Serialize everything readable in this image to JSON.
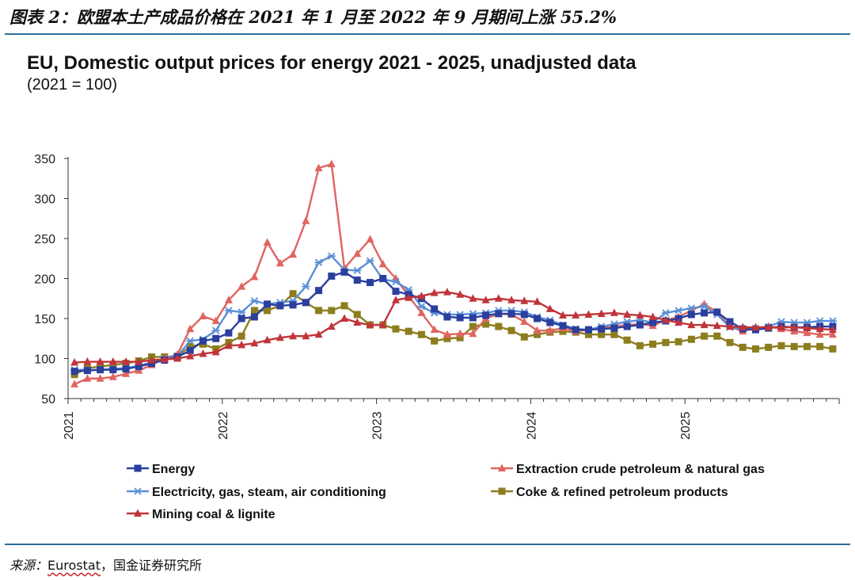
{
  "caption": "图表 2：欧盟本土产成品价格在 2021 年 1 月至 2022 年 9 月期间上涨 55.2%",
  "source": {
    "label": "来源：",
    "name": "Eurostat",
    "rest": "，国金证券研究所"
  },
  "chart_data": {
    "type": "line",
    "title": "EU, Domestic output prices for energy 2021 - 2025, unadjusted data",
    "subtitle": "(2021 = 100)",
    "xlabel": "",
    "ylabel": "",
    "ylim": [
      50,
      350
    ],
    "yticks": [
      "50",
      "100",
      "150",
      "200",
      "250",
      "300",
      "350"
    ],
    "xticks": [
      "2021",
      "2022",
      "2023",
      "2024",
      "2025"
    ],
    "grid": false,
    "x_start": "2021-01",
    "n_points": 60,
    "series": [
      {
        "name": "Energy",
        "color": "#2a3f9e",
        "marker": "square",
        "values": [
          84,
          85,
          86,
          86,
          87,
          90,
          94,
          98,
          102,
          110,
          122,
          125,
          132,
          150,
          152,
          168,
          166,
          167,
          170,
          185,
          203,
          208,
          198,
          195,
          200,
          184,
          180,
          175,
          162,
          152,
          151,
          151,
          154,
          156,
          156,
          155,
          150,
          145,
          141,
          136,
          136,
          137,
          138,
          140,
          142,
          145,
          147,
          150,
          155,
          157,
          158,
          146,
          137,
          136,
          138,
          140,
          139,
          139,
          140,
          140
        ]
      },
      {
        "name": "Extraction crude petroleum & natural gas",
        "color": "#e0645f",
        "marker": "triangle",
        "values": [
          68,
          75,
          75,
          77,
          81,
          85,
          92,
          100,
          105,
          137,
          153,
          147,
          173,
          190,
          202,
          245,
          219,
          230,
          272,
          338,
          343,
          213,
          231,
          249,
          218,
          200,
          178,
          157,
          136,
          130,
          131,
          131,
          150,
          156,
          155,
          146,
          135,
          135,
          138,
          134,
          136,
          138,
          140,
          142,
          143,
          141,
          148,
          152,
          160,
          168,
          158,
          140,
          134,
          138,
          140,
          137,
          134,
          132,
          130,
          130
        ]
      },
      {
        "name": "Electricity, gas, steam, air conditioning",
        "color": "#5b8fd6",
        "marker": "star",
        "values": [
          86,
          86,
          86,
          87,
          88,
          91,
          95,
          100,
          103,
          122,
          124,
          135,
          160,
          158,
          172,
          168,
          170,
          172,
          190,
          220,
          228,
          211,
          210,
          222,
          199,
          196,
          186,
          165,
          157,
          155,
          155,
          156,
          157,
          160,
          160,
          158,
          152,
          148,
          142,
          137,
          136,
          140,
          143,
          146,
          148,
          145,
          157,
          160,
          163,
          165,
          155,
          139,
          137,
          138,
          140,
          146,
          145,
          145,
          147,
          147
        ]
      },
      {
        "name": "Coke & refined petroleum products",
        "color": "#8c7e1e",
        "marker": "square",
        "values": [
          80,
          88,
          90,
          92,
          94,
          97,
          102,
          102,
          103,
          115,
          118,
          112,
          120,
          128,
          160,
          160,
          166,
          181,
          170,
          160,
          160,
          166,
          155,
          142,
          142,
          137,
          134,
          130,
          122,
          125,
          126,
          140,
          143,
          140,
          135,
          127,
          130,
          133,
          134,
          133,
          130,
          130,
          130,
          123,
          116,
          118,
          120,
          121,
          124,
          128,
          128,
          120,
          114,
          112,
          114,
          116,
          115,
          115,
          115,
          112
        ]
      },
      {
        "name": "Mining coal & lignite",
        "color": "#c0343a",
        "marker": "triangle",
        "values": [
          95,
          96,
          96,
          96,
          96,
          96,
          98,
          99,
          100,
          103,
          106,
          108,
          116,
          117,
          119,
          123,
          126,
          128,
          128,
          130,
          140,
          150,
          145,
          142,
          142,
          173,
          176,
          178,
          182,
          183,
          180,
          175,
          173,
          175,
          173,
          172,
          171,
          162,
          154,
          154,
          155,
          156,
          157,
          155,
          154,
          152,
          148,
          145,
          142,
          142,
          141,
          140,
          139,
          139,
          139,
          139,
          139,
          138,
          137,
          136
        ]
      }
    ]
  }
}
